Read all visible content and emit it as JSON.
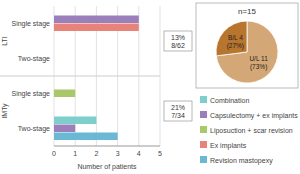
{
  "chart_data": [
    {
      "type": "bar",
      "orientation": "horizontal",
      "categories": [
        "Single stage",
        "Two-stage",
        "Single stage",
        "Two-stage"
      ],
      "groups": [
        "LTI",
        "LTI",
        "IMTy",
        "IMTy"
      ],
      "series": [
        {
          "name": "Combination",
          "color": "#7ECECE",
          "values": [
            null,
            null,
            null,
            2
          ]
        },
        {
          "name": "Capsulectomy + ex implants",
          "color": "#9B7FBB",
          "values": [
            4,
            null,
            null,
            1
          ]
        },
        {
          "name": "Liposuction + scar revision",
          "color": "#A8C86A",
          "values": [
            null,
            null,
            1,
            null
          ]
        },
        {
          "name": "Ex implants",
          "color": "#E8837A",
          "values": [
            4,
            null,
            null,
            null
          ]
        },
        {
          "name": "Revision mastopexy",
          "color": "#6BB8D4",
          "values": [
            null,
            null,
            null,
            3
          ]
        }
      ],
      "xlabel": "Number of patients",
      "xlim": [
        0,
        5
      ],
      "xticks": [
        0,
        1,
        2,
        3,
        4,
        5
      ],
      "grid": true,
      "annotations": [
        "13%\n8/62",
        "21%\n7/34"
      ]
    },
    {
      "type": "pie",
      "title": "n=15",
      "categories": [
        "U/L 11\n(73%)",
        "B/L 4\n(27%)"
      ],
      "values": [
        73,
        27
      ],
      "colors": [
        "#D4A876",
        "#B8752E"
      ]
    }
  ]
}
